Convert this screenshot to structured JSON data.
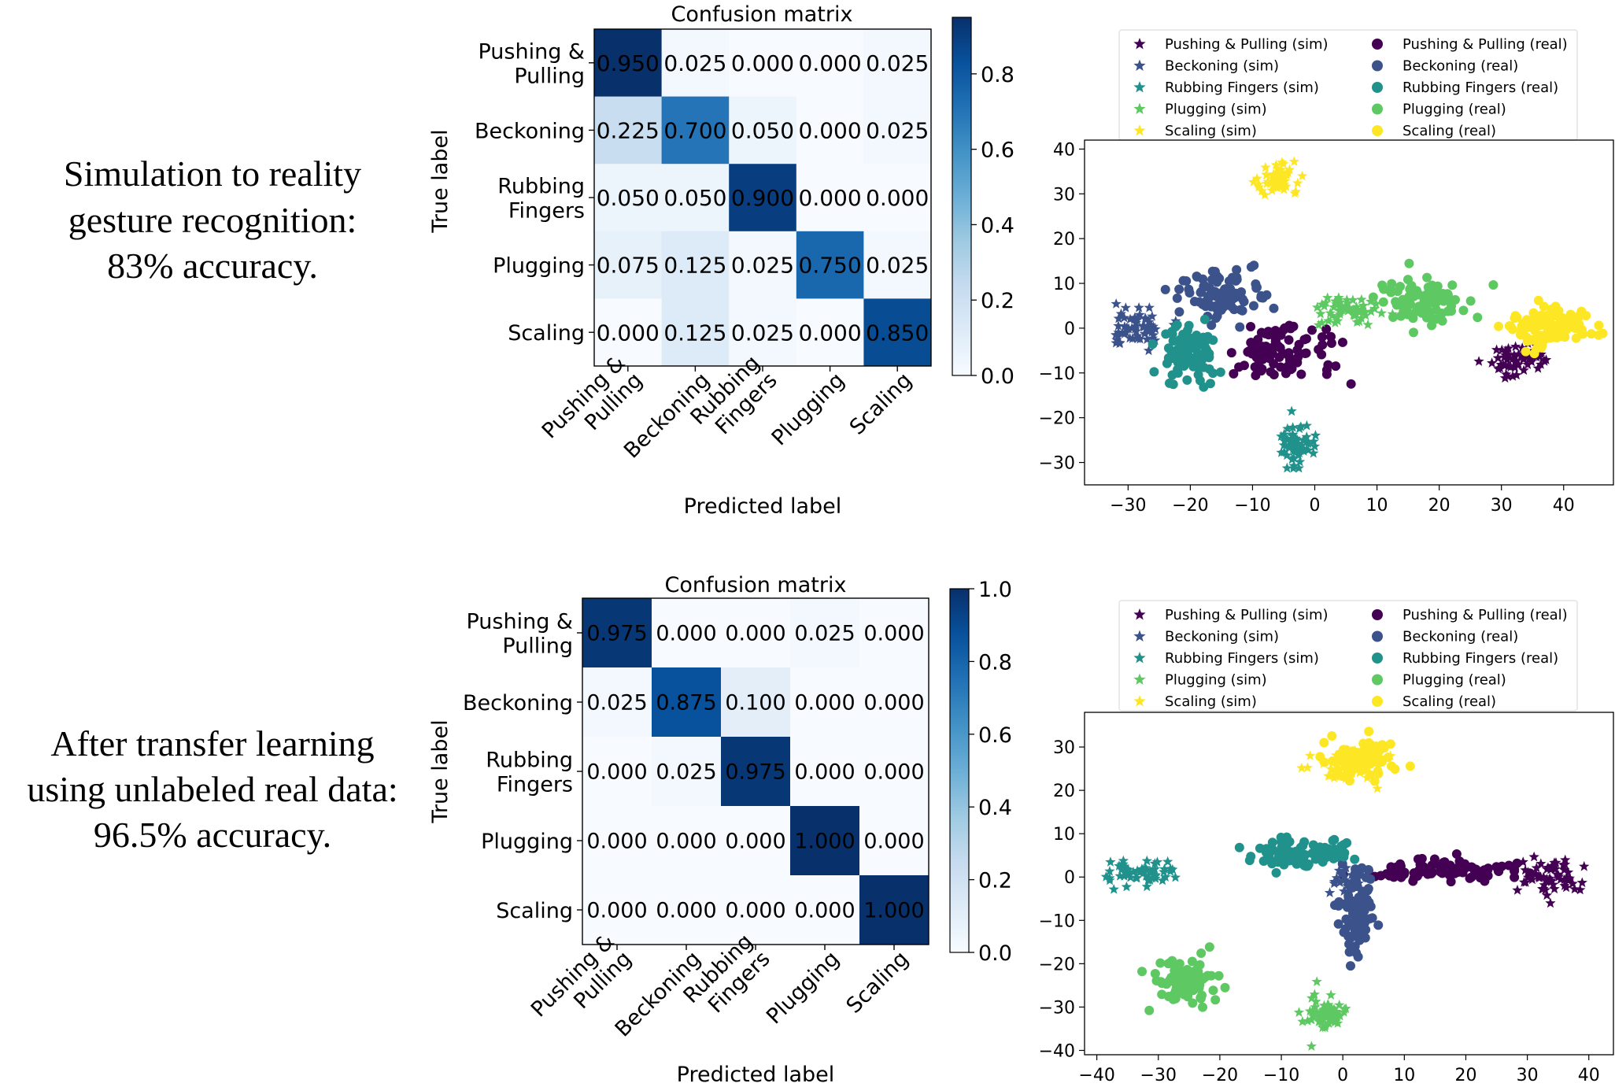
{
  "rows": [
    {
      "caption": [
        "Simulation to reality",
        "gesture recognition:",
        "83% accuracy."
      ],
      "confusion": {
        "title": "Confusion matrix",
        "xlabel": "Predicted label",
        "ylabel": "True label",
        "classes": [
          "Pushing & Pulling",
          "Beckoning",
          "Rubbing Fingers",
          "Plugging",
          "Scaling"
        ],
        "class_lines": [
          [
            "Pushing &",
            "Pulling"
          ],
          [
            "Beckoning"
          ],
          [
            "Rubbing",
            "Fingers"
          ],
          [
            "Plugging"
          ],
          [
            "Scaling"
          ]
        ],
        "matrix": [
          [
            0.95,
            0.025,
            0.0,
            0.0,
            0.025
          ],
          [
            0.225,
            0.7,
            0.05,
            0.0,
            0.025
          ],
          [
            0.05,
            0.05,
            0.9,
            0.0,
            0.0
          ],
          [
            0.075,
            0.125,
            0.025,
            0.75,
            0.025
          ],
          [
            0.0,
            0.125,
            0.025,
            0.0,
            0.85
          ]
        ],
        "cell_labels": [
          [
            "0.950",
            "0.025",
            "0.000",
            "0.000",
            "0.025"
          ],
          [
            "0.225",
            "0.700",
            "0.050",
            "0.000",
            "0.025"
          ],
          [
            "0.050",
            "0.050",
            "0.900",
            "0.000",
            "0.000"
          ],
          [
            "0.075",
            "0.125",
            "0.025",
            "0.750",
            "0.025"
          ],
          [
            "0.000",
            "0.125",
            "0.025",
            "0.000",
            "0.850"
          ]
        ],
        "colorbar": {
          "min": 0.0,
          "max": 0.95,
          "ticks": [
            "0.0",
            "0.2",
            "0.4",
            "0.6",
            "0.8"
          ]
        }
      },
      "tsne": {
        "xlim": [
          -37,
          48
        ],
        "ylim": [
          -35,
          42
        ],
        "xticks": [
          -30,
          -20,
          -10,
          0,
          10,
          20,
          30,
          40
        ],
        "yticks": [
          -30,
          -20,
          -10,
          0,
          10,
          20,
          30,
          40
        ],
        "xtick_labels": [
          "−30",
          "−20",
          "−10",
          "0",
          "10",
          "20",
          "30",
          "40"
        ],
        "ytick_labels": [
          "−30",
          "−20",
          "−10",
          "0",
          "10",
          "20",
          "30",
          "40"
        ],
        "clusters": [
          {
            "cls": 0,
            "domain": "sim",
            "cx": 33,
            "cy": -7,
            "sx": 3.5,
            "sy": 2.3,
            "n": 60
          },
          {
            "cls": 0,
            "domain": "real",
            "cx": -5,
            "cy": -5,
            "sx": 5.5,
            "sy": 4.0,
            "n": 90
          },
          {
            "cls": 1,
            "domain": "sim",
            "cx": -29,
            "cy": 0,
            "sx": 2.8,
            "sy": 2.6,
            "n": 60
          },
          {
            "cls": 1,
            "domain": "real",
            "cx": -15,
            "cy": 7,
            "sx": 4.5,
            "sy": 4.0,
            "n": 90
          },
          {
            "cls": 2,
            "domain": "sim",
            "cx": -3,
            "cy": -26,
            "sx": 1.8,
            "sy": 3.0,
            "n": 60
          },
          {
            "cls": 2,
            "domain": "real",
            "cx": -21,
            "cy": -6,
            "sx": 3.2,
            "sy": 4.0,
            "n": 90
          },
          {
            "cls": 3,
            "domain": "sim",
            "cx": 5,
            "cy": 4,
            "sx": 4.0,
            "sy": 2.2,
            "n": 60
          },
          {
            "cls": 3,
            "domain": "real",
            "cx": 18,
            "cy": 6,
            "sx": 4.5,
            "sy": 3.0,
            "n": 90
          },
          {
            "cls": 4,
            "domain": "sim",
            "cx": -6,
            "cy": 33,
            "sx": 2.0,
            "sy": 2.4,
            "n": 60
          },
          {
            "cls": 4,
            "domain": "real",
            "cx": 38,
            "cy": 0,
            "sx": 4.5,
            "sy": 3.0,
            "n": 110
          }
        ]
      }
    },
    {
      "caption": [
        "After transfer learning",
        "using unlabeled real data:",
        "96.5% accuracy."
      ],
      "confusion": {
        "title": "Confusion matrix",
        "xlabel": "Predicted label",
        "ylabel": "True label",
        "classes": [
          "Pushing & Pulling",
          "Beckoning",
          "Rubbing Fingers",
          "Plugging",
          "Scaling"
        ],
        "class_lines": [
          [
            "Pushing &",
            "Pulling"
          ],
          [
            "Beckoning"
          ],
          [
            "Rubbing",
            "Fingers"
          ],
          [
            "Plugging"
          ],
          [
            "Scaling"
          ]
        ],
        "matrix": [
          [
            0.975,
            0.0,
            0.0,
            0.025,
            0.0
          ],
          [
            0.025,
            0.875,
            0.1,
            0.0,
            0.0
          ],
          [
            0.0,
            0.025,
            0.975,
            0.0,
            0.0
          ],
          [
            0.0,
            0.0,
            0.0,
            1.0,
            0.0
          ],
          [
            0.0,
            0.0,
            0.0,
            0.0,
            1.0
          ]
        ],
        "cell_labels": [
          [
            "0.975",
            "0.000",
            "0.000",
            "0.025",
            "0.000"
          ],
          [
            "0.025",
            "0.875",
            "0.100",
            "0.000",
            "0.000"
          ],
          [
            "0.000",
            "0.025",
            "0.975",
            "0.000",
            "0.000"
          ],
          [
            "0.000",
            "0.000",
            "0.000",
            "1.000",
            "0.000"
          ],
          [
            "0.000",
            "0.000",
            "0.000",
            "0.000",
            "1.000"
          ]
        ],
        "colorbar": {
          "min": 0.0,
          "max": 1.0,
          "ticks": [
            "0.0",
            "0.2",
            "0.4",
            "0.6",
            "0.8",
            "1.0"
          ]
        }
      },
      "tsne": {
        "xlim": [
          -42,
          44
        ],
        "ylim": [
          -41,
          38
        ],
        "xticks": [
          -40,
          -30,
          -20,
          -10,
          0,
          10,
          20,
          30,
          40
        ],
        "yticks": [
          -40,
          -30,
          -20,
          -10,
          0,
          10,
          20,
          30
        ],
        "xtick_labels": [
          "−40",
          "−30",
          "−20",
          "−10",
          "0",
          "10",
          "20",
          "30",
          "40"
        ],
        "ytick_labels": [
          "−40",
          "−30",
          "−20",
          "−10",
          "0",
          "10",
          "20",
          "30"
        ],
        "clusters": [
          {
            "cls": 0,
            "domain": "sim",
            "cx": 34,
            "cy": 0,
            "sx": 3.5,
            "sy": 2.5,
            "n": 60
          },
          {
            "cls": 0,
            "domain": "real",
            "cx": 16,
            "cy": 1.5,
            "sx": 8.0,
            "sy": 1.5,
            "n": 100
          },
          {
            "cls": 1,
            "domain": "sim",
            "cx": 0,
            "cy": 0,
            "sx": 2.0,
            "sy": 2.0,
            "n": 20
          },
          {
            "cls": 1,
            "domain": "real",
            "cx": 2,
            "cy": -8,
            "sx": 2.0,
            "sy": 6.0,
            "n": 90
          },
          {
            "cls": 2,
            "domain": "sim",
            "cx": -33,
            "cy": 1,
            "sx": 3.5,
            "sy": 1.8,
            "n": 60
          },
          {
            "cls": 2,
            "domain": "real",
            "cx": -7,
            "cy": 5,
            "sx": 5.5,
            "sy": 2.5,
            "n": 90
          },
          {
            "cls": 3,
            "domain": "sim",
            "cx": -3,
            "cy": -32,
            "sx": 2.5,
            "sy": 3.0,
            "n": 60
          },
          {
            "cls": 3,
            "domain": "real",
            "cx": -26,
            "cy": -24,
            "sx": 3.5,
            "sy": 3.5,
            "n": 90
          },
          {
            "cls": 4,
            "domain": "sim",
            "cx": 0,
            "cy": 26,
            "sx": 4.0,
            "sy": 3.0,
            "n": 50
          },
          {
            "cls": 4,
            "domain": "real",
            "cx": 3,
            "cy": 28,
            "sx": 4.0,
            "sy": 3.5,
            "n": 90
          }
        ]
      }
    }
  ],
  "legend": {
    "sim": [
      "Pushing & Pulling (sim)",
      "Beckoning (sim)",
      "Rubbing Fingers (sim)",
      "Plugging (sim)",
      "Scaling (sim)"
    ],
    "real": [
      "Pushing & Pulling (real)",
      "Beckoning (real)",
      "Rubbing Fingers (real)",
      "Plugging (real)",
      "Scaling (real)"
    ]
  },
  "class_colors": [
    "#440154",
    "#3b528b",
    "#21918c",
    "#5ec962",
    "#fde725"
  ],
  "chart_data": [
    {
      "type": "heatmap",
      "title": "Confusion matrix",
      "xlabel": "Predicted label",
      "ylabel": "True label",
      "categories": [
        "Pushing & Pulling",
        "Beckoning",
        "Rubbing Fingers",
        "Plugging",
        "Scaling"
      ],
      "values": [
        [
          0.95,
          0.025,
          0.0,
          0.0,
          0.025
        ],
        [
          0.225,
          0.7,
          0.05,
          0.0,
          0.025
        ],
        [
          0.05,
          0.05,
          0.9,
          0.0,
          0.0
        ],
        [
          0.075,
          0.125,
          0.025,
          0.75,
          0.025
        ],
        [
          0.0,
          0.125,
          0.025,
          0.0,
          0.85
        ]
      ],
      "colorbar_range": [
        0,
        0.95
      ]
    },
    {
      "type": "scatter",
      "title": "",
      "xlim": [
        -37,
        48
      ],
      "ylim": [
        -35,
        42
      ],
      "series": [
        {
          "name": "Pushing & Pulling (sim)",
          "marker": "star"
        },
        {
          "name": "Beckoning (sim)",
          "marker": "star"
        },
        {
          "name": "Rubbing Fingers (sim)",
          "marker": "star"
        },
        {
          "name": "Plugging (sim)",
          "marker": "star"
        },
        {
          "name": "Scaling (sim)",
          "marker": "star"
        },
        {
          "name": "Pushing & Pulling (real)",
          "marker": "circle"
        },
        {
          "name": "Beckoning (real)",
          "marker": "circle"
        },
        {
          "name": "Rubbing Fingers (real)",
          "marker": "circle"
        },
        {
          "name": "Plugging (real)",
          "marker": "circle"
        },
        {
          "name": "Scaling (real)",
          "marker": "circle"
        }
      ]
    },
    {
      "type": "heatmap",
      "title": "Confusion matrix",
      "xlabel": "Predicted label",
      "ylabel": "True label",
      "categories": [
        "Pushing & Pulling",
        "Beckoning",
        "Rubbing Fingers",
        "Plugging",
        "Scaling"
      ],
      "values": [
        [
          0.975,
          0.0,
          0.0,
          0.025,
          0.0
        ],
        [
          0.025,
          0.875,
          0.1,
          0.0,
          0.0
        ],
        [
          0.0,
          0.025,
          0.975,
          0.0,
          0.0
        ],
        [
          0.0,
          0.0,
          0.0,
          1.0,
          0.0
        ],
        [
          0.0,
          0.0,
          0.0,
          0.0,
          1.0
        ]
      ],
      "colorbar_range": [
        0,
        1.0
      ]
    },
    {
      "type": "scatter",
      "title": "",
      "xlim": [
        -42,
        44
      ],
      "ylim": [
        -41,
        38
      ],
      "series": [
        {
          "name": "Pushing & Pulling (sim)",
          "marker": "star"
        },
        {
          "name": "Beckoning (sim)",
          "marker": "star"
        },
        {
          "name": "Rubbing Fingers (sim)",
          "marker": "star"
        },
        {
          "name": "Plugging (sim)",
          "marker": "star"
        },
        {
          "name": "Scaling (sim)",
          "marker": "star"
        },
        {
          "name": "Pushing & Pulling (real)",
          "marker": "circle"
        },
        {
          "name": "Beckoning (real)",
          "marker": "circle"
        },
        {
          "name": "Rubbing Fingers (real)",
          "marker": "circle"
        },
        {
          "name": "Plugging (real)",
          "marker": "circle"
        },
        {
          "name": "Scaling (real)",
          "marker": "circle"
        }
      ]
    }
  ]
}
